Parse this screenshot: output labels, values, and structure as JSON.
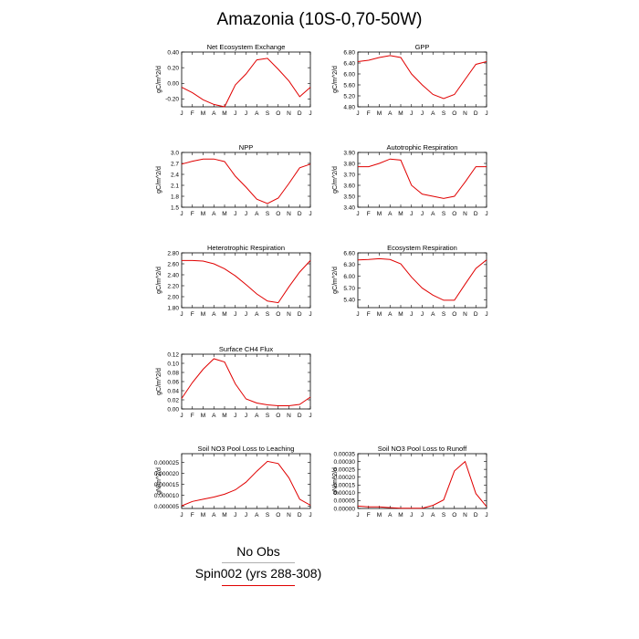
{
  "figure": {
    "title": "Amazonia (10S-0,70-50W)",
    "legend": [
      {
        "label": "No Obs",
        "color": "#b0b0b0"
      },
      {
        "label": "Spin002 (yrs 288-308)",
        "color": "#e00000"
      }
    ]
  },
  "chart_data": [
    {
      "type": "line",
      "title": "Net Ecosystem Exchange",
      "ylabel": "gC/m^2/d",
      "categories": [
        "J",
        "F",
        "M",
        "A",
        "M",
        "J",
        "J",
        "A",
        "S",
        "O",
        "N",
        "D",
        "J"
      ],
      "series": [
        {
          "values": [
            -0.05,
            -0.12,
            -0.21,
            -0.27,
            -0.3,
            -0.02,
            0.12,
            0.3,
            0.32,
            0.18,
            0.03,
            -0.17,
            -0.05
          ]
        }
      ],
      "ylim": [
        -0.3,
        0.4
      ],
      "yticks": [
        "-0.20",
        "0.00",
        "0.20",
        "0.40"
      ]
    },
    {
      "type": "line",
      "title": "GPP",
      "ylabel": "gC/m^2/d",
      "categories": [
        "J",
        "F",
        "M",
        "A",
        "M",
        "J",
        "J",
        "A",
        "S",
        "O",
        "N",
        "D",
        "J"
      ],
      "series": [
        {
          "values": [
            6.45,
            6.5,
            6.6,
            6.67,
            6.6,
            6.0,
            5.6,
            5.25,
            5.1,
            5.25,
            5.8,
            6.35,
            6.45
          ]
        }
      ],
      "ylim": [
        4.8,
        6.8
      ],
      "yticks": [
        "4.80",
        "5.20",
        "5.60",
        "6.00",
        "6.40",
        "6.80"
      ]
    },
    {
      "type": "line",
      "title": "NPP",
      "ylabel": "gC/m^2/d",
      "categories": [
        "J",
        "F",
        "M",
        "A",
        "M",
        "J",
        "J",
        "A",
        "S",
        "O",
        "N",
        "D",
        "J"
      ],
      "series": [
        {
          "values": [
            2.68,
            2.76,
            2.82,
            2.82,
            2.75,
            2.35,
            2.05,
            1.72,
            1.6,
            1.75,
            2.15,
            2.58,
            2.68
          ]
        }
      ],
      "ylim": [
        1.5,
        3.0
      ],
      "yticks": [
        "1.5",
        "1.8",
        "2.1",
        "2.4",
        "2.7",
        "3.0"
      ]
    },
    {
      "type": "line",
      "title": "Autotrophic Respiration",
      "ylabel": "gC/m^2/d",
      "categories": [
        "J",
        "F",
        "M",
        "A",
        "M",
        "J",
        "J",
        "A",
        "S",
        "O",
        "N",
        "D",
        "J"
      ],
      "series": [
        {
          "values": [
            3.77,
            3.77,
            3.8,
            3.84,
            3.83,
            3.6,
            3.52,
            3.5,
            3.48,
            3.5,
            3.63,
            3.77,
            3.77
          ]
        }
      ],
      "ylim": [
        3.4,
        3.9
      ],
      "yticks": [
        "3.40",
        "3.50",
        "3.60",
        "3.70",
        "3.80",
        "3.90"
      ]
    },
    {
      "type": "line",
      "title": "Heterotrophic Respiration",
      "ylabel": "gC/m^2/d",
      "categories": [
        "J",
        "F",
        "M",
        "A",
        "M",
        "J",
        "J",
        "A",
        "S",
        "O",
        "N",
        "D",
        "J"
      ],
      "series": [
        {
          "values": [
            2.66,
            2.66,
            2.65,
            2.6,
            2.51,
            2.38,
            2.22,
            2.05,
            1.92,
            1.89,
            2.18,
            2.45,
            2.66
          ]
        }
      ],
      "ylim": [
        1.8,
        2.8
      ],
      "yticks": [
        "1.80",
        "2.00",
        "2.20",
        "2.40",
        "2.60",
        "2.80"
      ]
    },
    {
      "type": "line",
      "title": "Ecosystem Respiration",
      "ylabel": "gC/m^2/d",
      "categories": [
        "J",
        "F",
        "M",
        "A",
        "M",
        "J",
        "J",
        "A",
        "S",
        "O",
        "N",
        "D",
        "J"
      ],
      "series": [
        {
          "values": [
            6.42,
            6.43,
            6.45,
            6.43,
            6.32,
            5.98,
            5.7,
            5.52,
            5.39,
            5.39,
            5.8,
            6.2,
            6.42
          ]
        }
      ],
      "ylim": [
        5.2,
        6.6
      ],
      "yticks": [
        "5.40",
        "5.70",
        "6.00",
        "6.30",
        "6.60"
      ]
    },
    {
      "type": "line",
      "title": "Surface CH4 Flux",
      "ylabel": "gC/m^2/d",
      "categories": [
        "J",
        "F",
        "M",
        "A",
        "M",
        "J",
        "J",
        "A",
        "S",
        "O",
        "N",
        "D",
        "J"
      ],
      "series": [
        {
          "values": [
            0.023,
            0.058,
            0.087,
            0.11,
            0.103,
            0.055,
            0.022,
            0.013,
            0.009,
            0.007,
            0.007,
            0.01,
            0.026
          ]
        }
      ],
      "ylim": [
        0.0,
        0.12
      ],
      "yticks": [
        "0.00",
        "0.02",
        "0.04",
        "0.06",
        "0.08",
        "0.10",
        "0.12"
      ]
    },
    {
      "type": "line",
      "title": "Soil NO3 Pool Loss to Leaching",
      "ylabel": "gN/m^2/d",
      "categories": [
        "J",
        "F",
        "M",
        "A",
        "M",
        "J",
        "J",
        "A",
        "S",
        "O",
        "N",
        "D",
        "J"
      ],
      "series": [
        {
          "values": [
            5.2e-06,
            7.2e-06,
            8.2e-06,
            9.2e-06,
            1.05e-05,
            1.25e-05,
            1.6e-05,
            2.1e-05,
            2.55e-05,
            2.45e-05,
            1.8e-05,
            8.2e-06,
            5.5e-06
          ]
        }
      ],
      "ylim": [
        4e-06,
        2.9e-05
      ],
      "yticks": [
        "0.000005",
        "0.000010",
        "0.000015",
        "0.000020",
        "0.000025"
      ]
    },
    {
      "type": "line",
      "title": "Soil NO3 Pool Loss to Runoff",
      "ylabel": "gN/m^2/d",
      "categories": [
        "J",
        "F",
        "M",
        "A",
        "M",
        "J",
        "J",
        "A",
        "S",
        "O",
        "N",
        "D",
        "J"
      ],
      "series": [
        {
          "values": [
            1.5e-05,
            1e-05,
            1e-05,
            5e-06,
            2e-06,
            1e-06,
            2e-06,
            2e-05,
            5.5e-05,
            0.00024,
            0.0003,
            9.5e-05,
            1.2e-05
          ]
        }
      ],
      "ylim": [
        0.0,
        0.00035
      ],
      "yticks": [
        "0.00000",
        "0.00005",
        "0.00010",
        "0.00015",
        "0.00020",
        "0.00025",
        "0.00030",
        "0.00035"
      ]
    }
  ]
}
